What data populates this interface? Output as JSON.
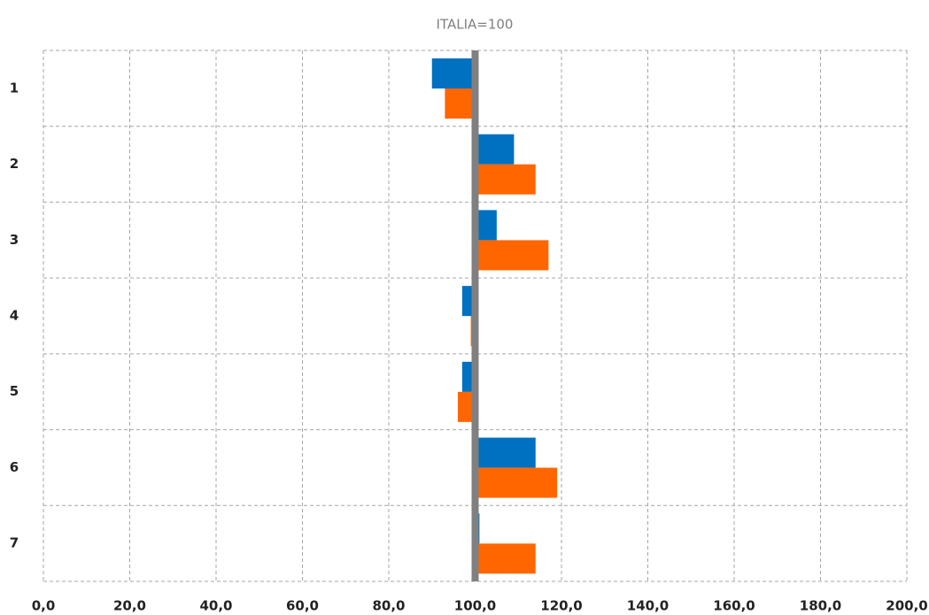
{
  "chart_data": {
    "type": "bar",
    "orientation": "horizontal",
    "title": "ITALIA=100",
    "categories": [
      "1",
      "2",
      "3",
      "4",
      "5",
      "6",
      "7"
    ],
    "base": 100,
    "series": [
      {
        "color": "#0070c0",
        "values": [
          90,
          109,
          105,
          97,
          97,
          114,
          101
        ]
      },
      {
        "color": "#ff6600",
        "values": [
          93,
          114,
          117,
          99,
          96,
          119,
          114
        ]
      }
    ],
    "xlim": [
      0,
      200
    ],
    "xticks": [
      {
        "value": 0,
        "label": "0,0"
      },
      {
        "value": 20,
        "label": "20,0"
      },
      {
        "value": 40,
        "label": "40,0"
      },
      {
        "value": 60,
        "label": "60,0"
      },
      {
        "value": 80,
        "label": "80,0"
      },
      {
        "value": 100,
        "label": "100,0"
      },
      {
        "value": 120,
        "label": "120,0"
      },
      {
        "value": 140,
        "label": "140,0"
      },
      {
        "value": 160,
        "label": "160,0"
      },
      {
        "value": 180,
        "label": "180,0"
      },
      {
        "value": 200,
        "label": "200,0"
      }
    ],
    "grid": true
  }
}
